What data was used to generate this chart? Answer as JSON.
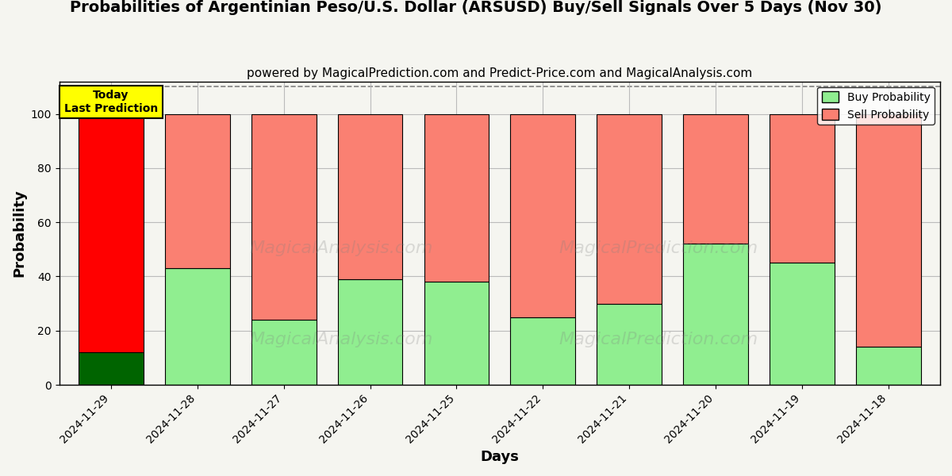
{
  "title": "Probabilities of Argentinian Peso/U.S. Dollar (ARSUSD) Buy/Sell Signals Over 5 Days (Nov 30)",
  "subtitle": "powered by MagicalPrediction.com and Predict-Price.com and MagicalAnalysis.com",
  "xlabel": "Days",
  "ylabel": "Probability",
  "categories": [
    "2024-11-29",
    "2024-11-28",
    "2024-11-27",
    "2024-11-26",
    "2024-11-25",
    "2024-11-22",
    "2024-11-21",
    "2024-11-20",
    "2024-11-19",
    "2024-11-18"
  ],
  "buy_values": [
    12,
    43,
    24,
    39,
    38,
    25,
    30,
    52,
    45,
    14
  ],
  "sell_values": [
    88,
    57,
    76,
    61,
    62,
    75,
    70,
    48,
    55,
    86
  ],
  "today_buy_color": "#006400",
  "today_sell_color": "#FF0000",
  "normal_buy_color": "#90EE90",
  "normal_sell_color": "#FA8072",
  "today_label_bg": "#FFFF00",
  "today_label_text": "Today\nLast Prediction",
  "bar_width": 0.75,
  "ylim": [
    0,
    112
  ],
  "yticks": [
    0,
    20,
    40,
    60,
    80,
    100
  ],
  "dashed_line_y": 110,
  "legend_buy": "Buy Probability",
  "legend_sell": "Sell Probability",
  "edgecolor": "black",
  "bg_color": "#F5F5F0",
  "grid_color": "#BBBBBB",
  "title_fontsize": 14,
  "subtitle_fontsize": 11,
  "axis_label_fontsize": 13,
  "watermark1": "MagicalAnalysis.com",
  "watermark2": "MagicalPrediction.com"
}
